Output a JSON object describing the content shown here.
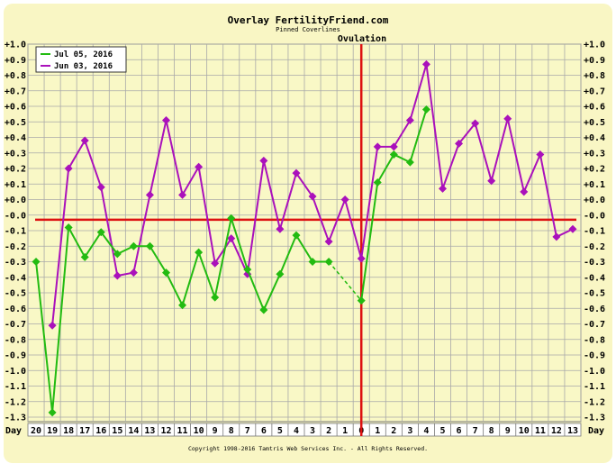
{
  "title": "Overlay FertilityFriend.com",
  "subtitle": "Pinned Coverlines",
  "ovulation_label": "Ovulation",
  "day_label": "Day",
  "copyright": "Copyright 1998-2016 Tamtris Web Services Inc. - All Rights Reserved.",
  "colors": {
    "panel": "#f9f6c4",
    "plot_bg": "#f9f8c6",
    "grid": "#a9a9a9",
    "coverline": "#dd1111",
    "series_green": "#22bb11",
    "series_purple": "#aa11bb"
  },
  "chart_data": {
    "type": "line",
    "x_tick_labels": [
      "20",
      "19",
      "18",
      "17",
      "16",
      "15",
      "14",
      "13",
      "12",
      "11",
      "10",
      "9",
      "8",
      "7",
      "6",
      "5",
      "4",
      "3",
      "2",
      "1",
      "0",
      "1",
      "2",
      "3",
      "4",
      "5",
      "6",
      "7",
      "8",
      "9",
      "10",
      "11",
      "12",
      "13"
    ],
    "y_tick_labels": [
      "+1.0",
      "+0.9",
      "+0.8",
      "+0.7",
      "+0.6",
      "+0.5",
      "+0.4",
      "+0.3",
      "+0.2",
      "+0.1",
      "+0.0",
      "-0.0",
      "-0.1",
      "-0.2",
      "-0.3",
      "-0.4",
      "-0.5",
      "-0.6",
      "-0.7",
      "-0.8",
      "-0.9",
      "-1.0",
      "-1.1",
      "-1.2",
      "-1.3"
    ],
    "coverline_y": -0.03,
    "ovulation_day": "0",
    "legend_position": "top-left",
    "grid": true,
    "series": [
      {
        "name": "Jul 05, 2016",
        "color": "#22bb11",
        "values": [
          -0.3,
          -1.27,
          -0.08,
          -0.27,
          -0.11,
          -0.25,
          -0.2,
          -0.2,
          -0.37,
          -0.58,
          -0.24,
          -0.53,
          -0.02,
          -0.35,
          -0.61,
          -0.38,
          -0.13,
          -0.3,
          -0.3,
          null,
          -0.55,
          0.11,
          0.29,
          0.24,
          0.58,
          null,
          null,
          null,
          null,
          null,
          null,
          null,
          null,
          null
        ],
        "dashed_segment": [
          18,
          20
        ]
      },
      {
        "name": "Jun 03, 2016",
        "color": "#aa11bb",
        "values": [
          null,
          -0.71,
          0.2,
          0.38,
          0.08,
          -0.39,
          -0.37,
          0.03,
          0.51,
          0.03,
          0.21,
          -0.31,
          -0.15,
          -0.38,
          0.25,
          -0.09,
          0.17,
          0.02,
          -0.17,
          0.0,
          -0.28,
          0.34,
          0.34,
          0.51,
          0.87,
          0.07,
          0.36,
          0.49,
          0.12,
          0.52,
          0.05,
          0.29,
          -0.14,
          -0.09
        ]
      }
    ]
  }
}
